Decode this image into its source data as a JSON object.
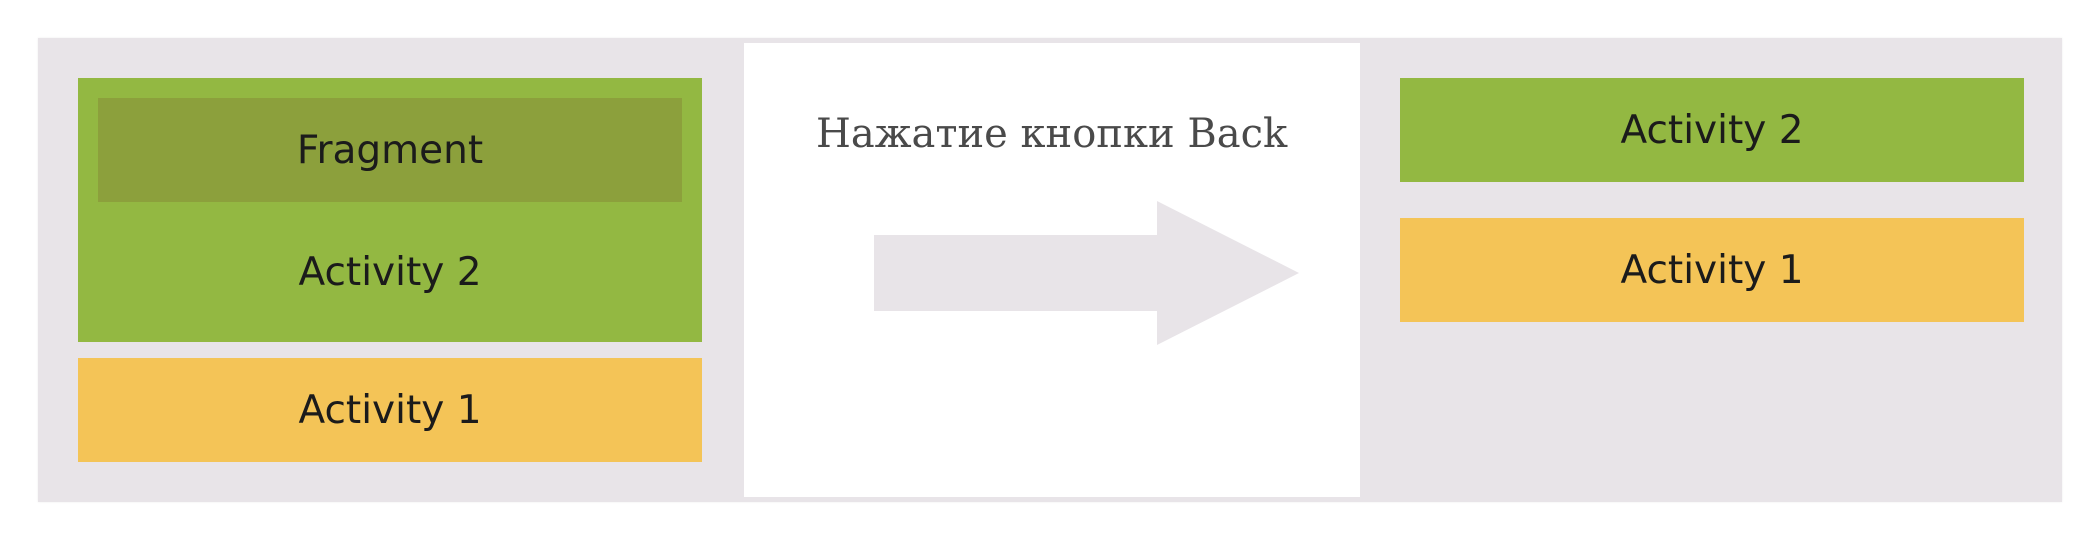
{
  "diagram": {
    "before": {
      "fragment_label": "Fragment",
      "activity2_label": "Activity 2",
      "activity1_label": "Activity 1"
    },
    "transition": {
      "caption": "Нажатие кнопки Back",
      "arrow_icon": "arrow-right-icon"
    },
    "after": {
      "activity2_label": "Activity 2",
      "activity1_label": "Activity 1"
    },
    "colors": {
      "background": "#e8e4e8",
      "activity2": "#93b842",
      "fragment": "#8ca03c",
      "activity1": "#f4c457",
      "arrow": "#e8e4e8"
    }
  }
}
